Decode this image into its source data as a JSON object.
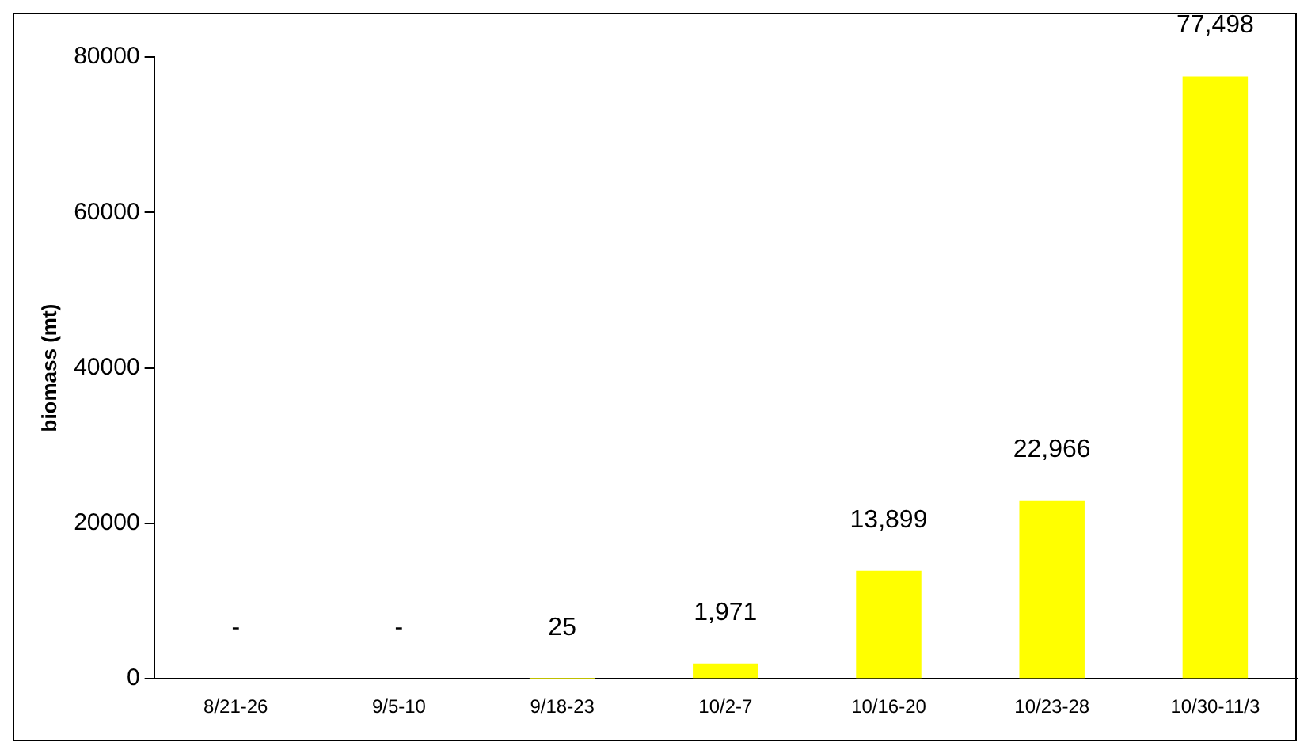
{
  "chart_data": {
    "type": "bar",
    "ylabel": "biomass (mt)",
    "categories": [
      "8/21-26",
      "9/5-10",
      "9/18-23",
      "10/2-7",
      "10/16-20",
      "10/23-28",
      "10/30-11/3"
    ],
    "values": [
      0,
      0,
      25,
      1971,
      13899,
      22966,
      77498
    ],
    "value_labels": [
      "-",
      "-",
      "25",
      "1,971",
      "13,899",
      "22,966",
      "77,498"
    ],
    "color": "#ffff00",
    "ylim": [
      0,
      80000
    ],
    "yticks": [
      0,
      20000,
      40000,
      60000,
      80000
    ],
    "grid": false,
    "legend": false
  }
}
